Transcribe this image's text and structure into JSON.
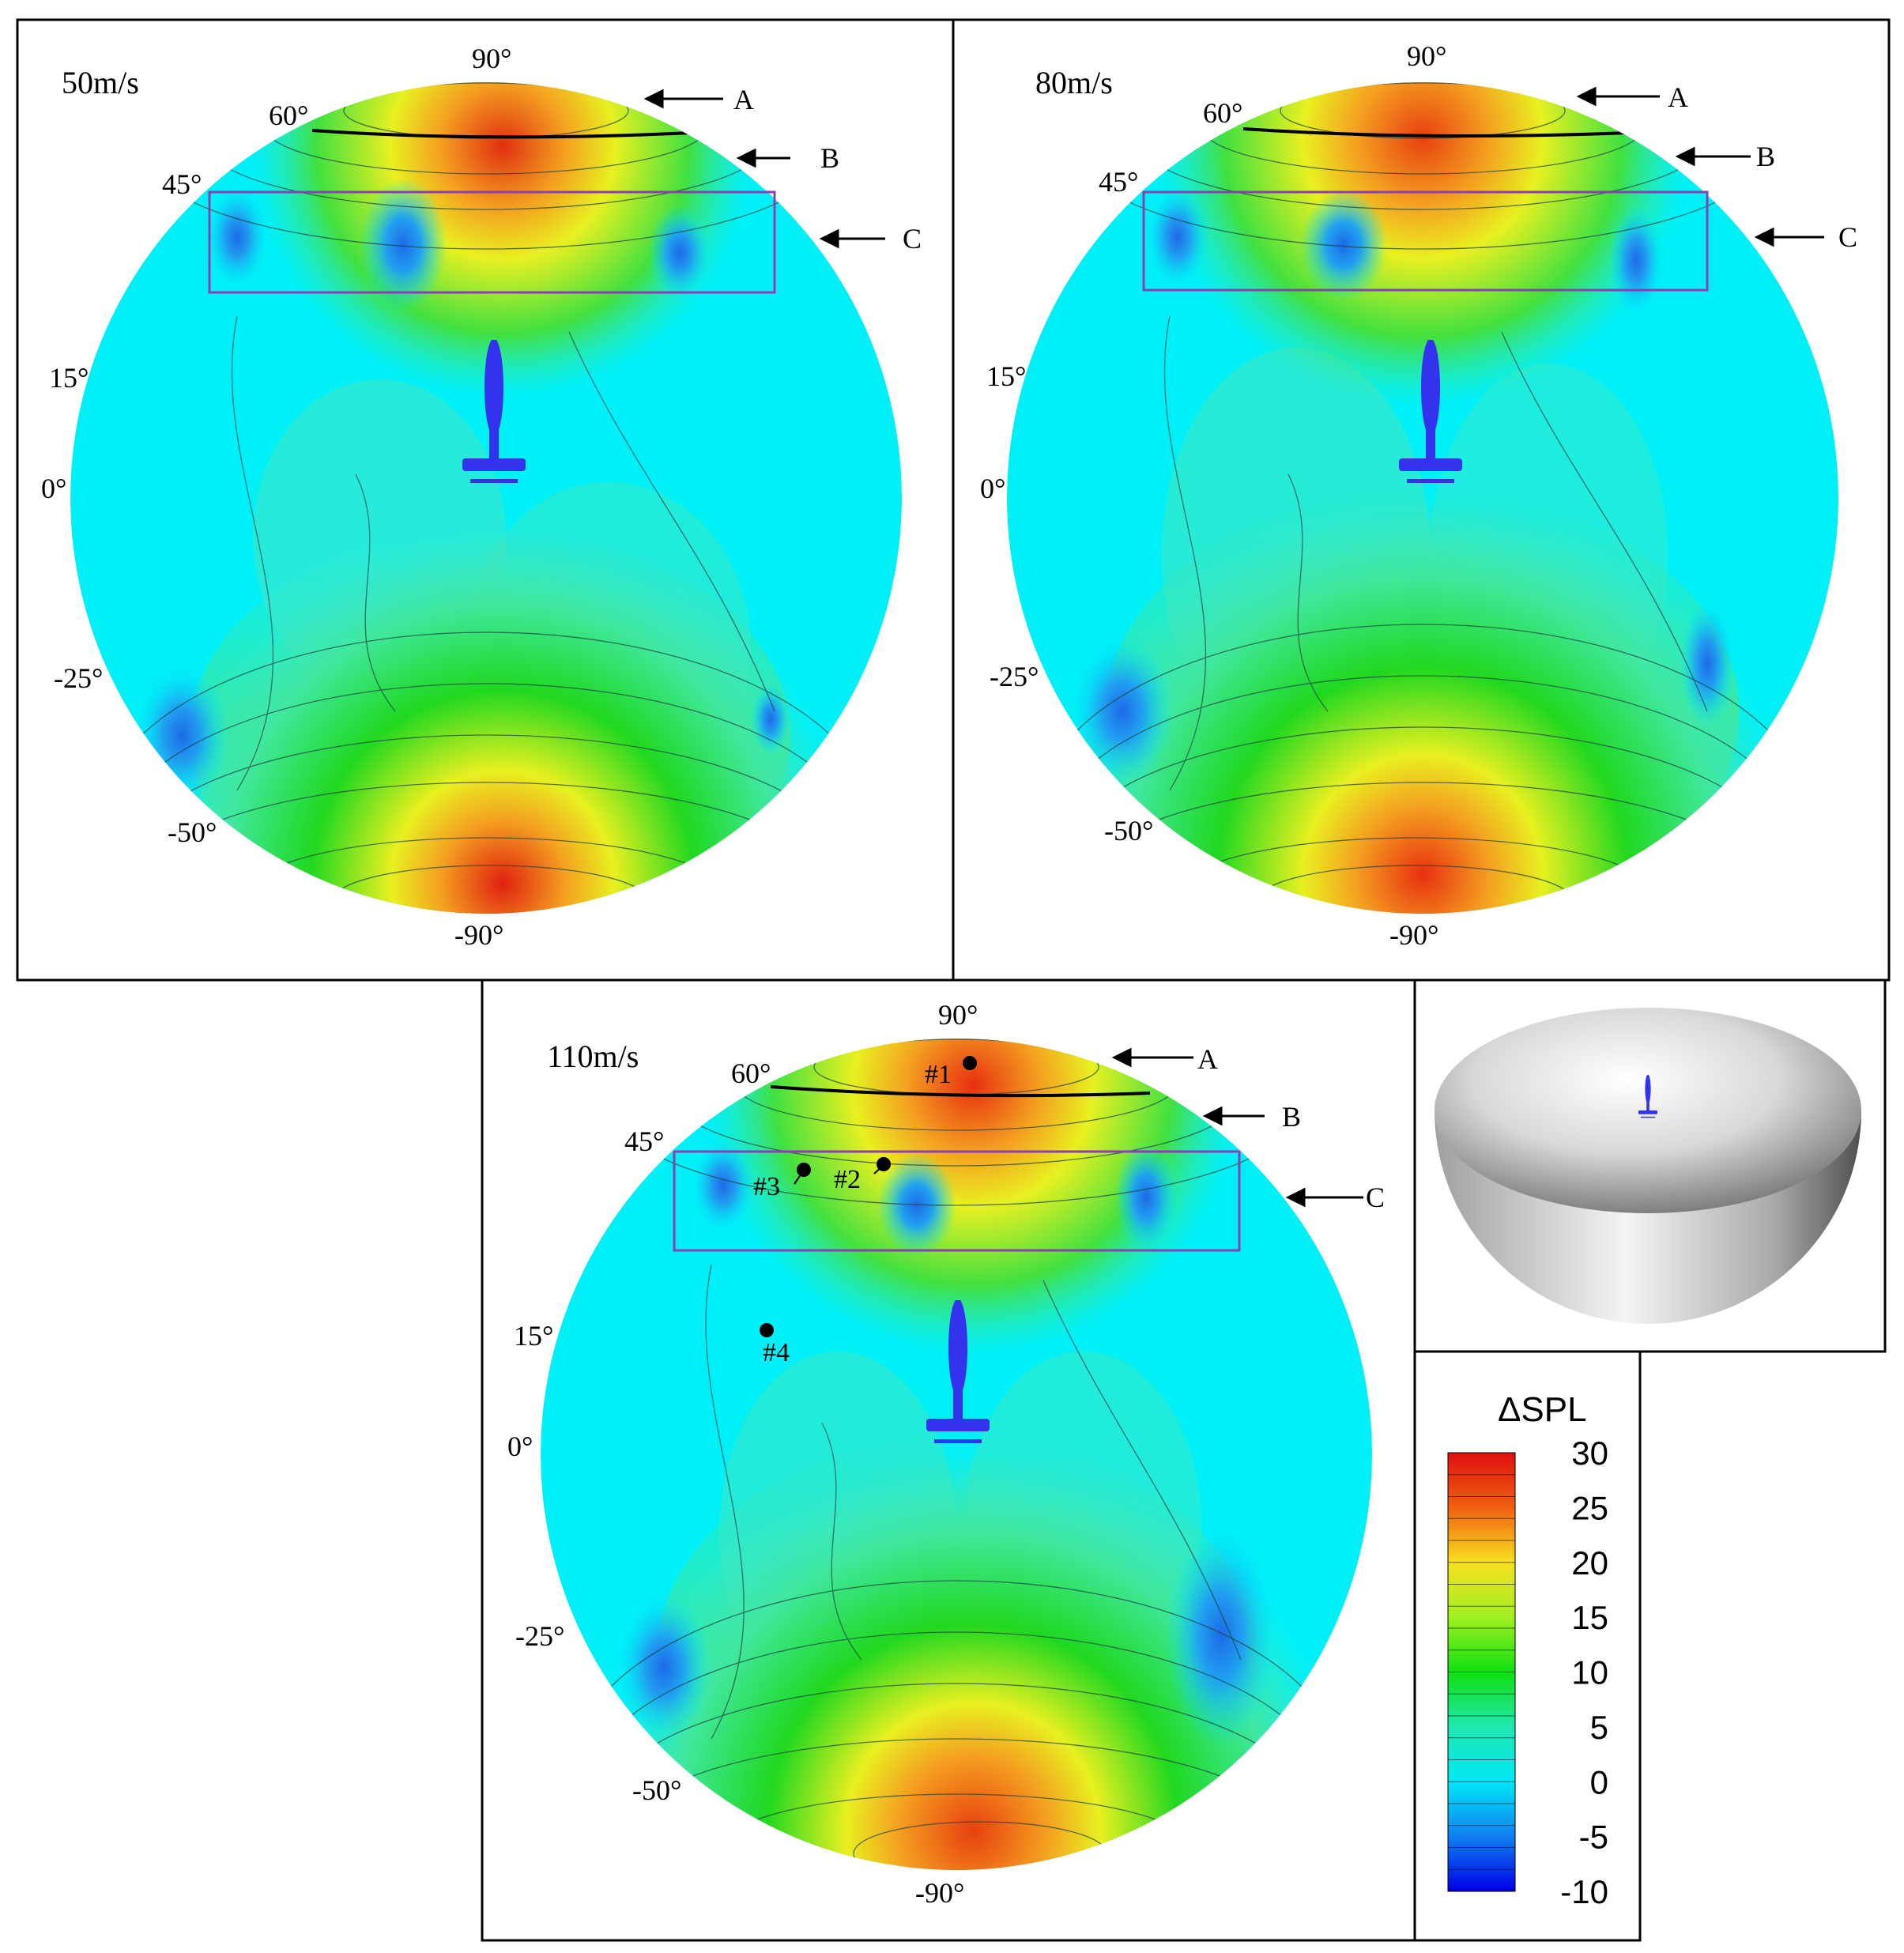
{
  "panels": [
    {
      "speed_label": "50m/s",
      "angles": [
        "90°",
        "60°",
        "45°",
        "15°",
        "0°",
        "-25°",
        "-50°",
        "-90°"
      ],
      "arrows": [
        "A",
        "B",
        "C"
      ]
    },
    {
      "speed_label": "80m/s",
      "angles": [
        "90°",
        "60°",
        "45°",
        "15°",
        "0°",
        "-25°",
        "-50°",
        "-90°"
      ],
      "arrows": [
        "A",
        "B",
        "C"
      ]
    },
    {
      "speed_label": "110m/s",
      "angles": [
        "90°",
        "60°",
        "45°",
        "15°",
        "0°",
        "-25°",
        "-50°",
        "-90°"
      ],
      "arrows": [
        "A",
        "B",
        "C"
      ],
      "points": [
        "#1",
        "#2",
        "#3",
        "#4"
      ]
    }
  ],
  "legend": {
    "title": "ΔSPL",
    "ticks": [
      "30",
      "25",
      "20",
      "15",
      "10",
      "5",
      "0",
      "-5",
      "-10"
    ],
    "min": -10,
    "max": 30
  },
  "colors": {
    "frame": "#000000",
    "highlight_box": "#8B3FB5",
    "aircraft": "#3333EE",
    "sphere_base": "#00F0F8",
    "hemisphere_light": "#FFFFFF",
    "hemisphere_dark": "#555555"
  },
  "icons": {
    "aircraft": "aircraft-silhouette-icon",
    "hemisphere": "hemisphere-icon"
  }
}
